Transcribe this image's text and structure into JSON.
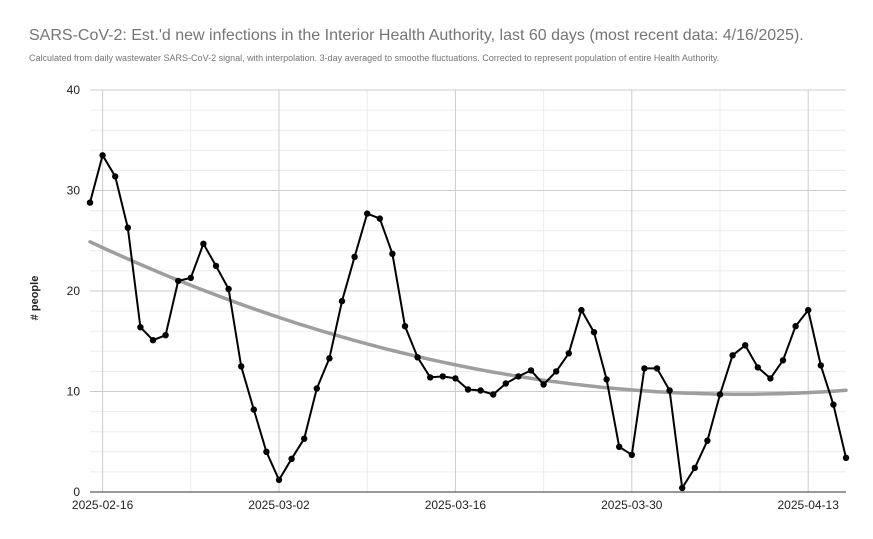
{
  "chart_data": {
    "type": "line",
    "title": "SARS-CoV-2: Est.'d new infections in the Interior Health Authority, last 60 days (most recent data: 4/16/2025).",
    "subtitle": "Calculated from daily wastewater SARS-CoV-2 signal, with interpolation. 3-day averaged to smoothe fluctuations. Corrected to represent population of entire Health Authority.",
    "xlabel": "",
    "ylabel": "# people",
    "ylim": [
      0,
      40
    ],
    "y_ticks": [
      0,
      10,
      20,
      30,
      40
    ],
    "x_ticks": [
      "2025-02-16",
      "2025-03-02",
      "2025-03-16",
      "2025-03-30",
      "2025-04-13"
    ],
    "x_range": [
      "2025-02-15",
      "2025-04-16"
    ],
    "grid": true,
    "series": [
      {
        "kind": "line",
        "color": "#000000",
        "x": [
          "2025-02-15",
          "2025-02-16",
          "2025-02-17",
          "2025-02-18",
          "2025-02-19",
          "2025-02-20",
          "2025-02-21",
          "2025-02-22",
          "2025-02-23",
          "2025-02-24",
          "2025-02-25",
          "2025-02-26",
          "2025-02-27",
          "2025-02-28",
          "2025-03-01",
          "2025-03-02",
          "2025-03-03",
          "2025-03-04",
          "2025-03-05",
          "2025-03-06",
          "2025-03-07",
          "2025-03-08",
          "2025-03-09",
          "2025-03-10",
          "2025-03-11",
          "2025-03-12",
          "2025-03-13",
          "2025-03-14",
          "2025-03-15",
          "2025-03-16",
          "2025-03-17",
          "2025-03-18",
          "2025-03-19",
          "2025-03-20",
          "2025-03-21",
          "2025-03-22",
          "2025-03-23",
          "2025-03-24",
          "2025-03-25",
          "2025-03-26",
          "2025-03-27",
          "2025-03-28",
          "2025-03-29",
          "2025-03-30",
          "2025-03-31",
          "2025-04-01",
          "2025-04-02",
          "2025-04-03",
          "2025-04-04",
          "2025-04-05",
          "2025-04-06",
          "2025-04-07",
          "2025-04-08",
          "2025-04-09",
          "2025-04-10",
          "2025-04-11",
          "2025-04-12",
          "2025-04-13",
          "2025-04-14",
          "2025-04-15",
          "2025-04-16"
        ],
        "values": [
          28.8,
          33.5,
          31.4,
          26.3,
          16.4,
          15.1,
          15.6,
          21.0,
          21.3,
          24.7,
          22.5,
          20.2,
          12.5,
          8.2,
          4.0,
          1.2,
          3.3,
          5.3,
          10.3,
          13.3,
          19.0,
          23.4,
          27.7,
          27.2,
          23.7,
          16.5,
          13.4,
          11.4,
          11.5,
          11.3,
          10.2,
          10.1,
          9.7,
          10.8,
          11.5,
          12.1,
          10.7,
          12.0,
          13.8,
          18.1,
          15.9,
          11.2,
          4.5,
          3.7,
          12.3,
          12.3,
          10.1,
          0.4,
          2.4,
          5.1,
          9.7,
          13.6,
          14.6,
          12.4,
          11.3,
          13.1,
          16.5,
          18.1,
          12.6,
          8.7,
          3.4
        ]
      },
      {
        "kind": "trendline",
        "color": "#9e9e9e",
        "polynomial_coefficients": [
          0.005678,
          -0.587,
          24.9
        ]
      }
    ]
  }
}
